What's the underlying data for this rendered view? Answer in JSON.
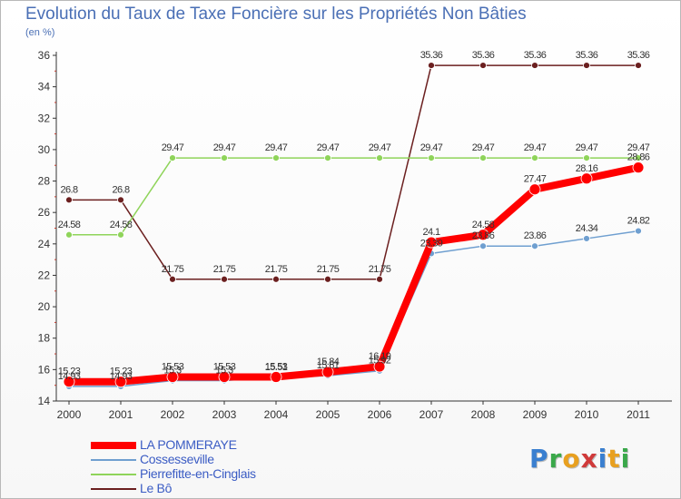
{
  "title": "Evolution du Taux de Taxe Foncière sur les Propriétés Non Bâties",
  "subtitle": "(en %)",
  "logo": {
    "letters": [
      {
        "ch": "P",
        "color": "#3a7fd0"
      },
      {
        "ch": "r",
        "color": "#3aa84a"
      },
      {
        "ch": "o",
        "color": "#e8a020"
      },
      {
        "ch": "x",
        "color": "#d03a3a"
      },
      {
        "ch": "i",
        "color": "#3a7fd0"
      },
      {
        "ch": "t",
        "color": "#e8a020"
      },
      {
        "ch": "i",
        "color": "#3aa84a"
      }
    ]
  },
  "chart_data": {
    "type": "line",
    "title": "Evolution du Taux de Taxe Foncière sur les Propriétés Non Bâties",
    "ylabel": "(en %)",
    "xlabel": "",
    "x": [
      "2000",
      "2001",
      "2002",
      "2003",
      "2004",
      "2005",
      "2006",
      "2007",
      "2008",
      "2009",
      "2010",
      "2011"
    ],
    "ylim": [
      14,
      36
    ],
    "yticks": [
      14,
      16,
      18,
      20,
      22,
      24,
      26,
      28,
      30,
      32,
      34,
      36
    ],
    "grid": false,
    "legend_position": "bottom-left",
    "series": [
      {
        "name": "Le Bô",
        "color": "#6b1f1f",
        "width": 1.5,
        "marker_r": 3.5,
        "values": [
          26.8,
          26.8,
          21.75,
          21.75,
          21.75,
          21.75,
          21.75,
          35.36,
          35.36,
          35.36,
          35.36,
          35.36
        ],
        "labels": [
          "26.8",
          "26.8",
          "21.75",
          "21.75",
          "21.75",
          "21.75",
          "21.75",
          "35.36",
          "35.36",
          "35.36",
          "35.36",
          "35.36"
        ]
      },
      {
        "name": "Pierrefitte-en-Cinglais",
        "color": "#8fd45a",
        "width": 1.5,
        "marker_r": 3.5,
        "values": [
          24.58,
          24.58,
          29.47,
          29.47,
          29.47,
          29.47,
          29.47,
          29.47,
          29.47,
          29.47,
          29.47,
          29.47
        ],
        "labels": [
          "24.58",
          "24.58",
          "29.47",
          "29.47",
          "29.47",
          "29.47",
          "29.47",
          "29.47",
          "29.47",
          "29.47",
          "29.47",
          "29.47"
        ]
      },
      {
        "name": "Cossesseville",
        "color": "#6f9fd0",
        "width": 1.5,
        "marker_r": 3.5,
        "values": [
          14.93,
          14.93,
          15.3,
          15.3,
          15.51,
          15.61,
          15.92,
          23.39,
          23.86,
          23.86,
          24.34,
          24.82
        ],
        "labels": [
          "14.93",
          "14.93",
          "15.3",
          "15.3",
          "15.51",
          "15.61",
          "15.92",
          "23.39",
          "23.86",
          "23.86",
          "24.34",
          "24.82"
        ]
      },
      {
        "name": "LA POMMERAYE",
        "color": "#ff0000",
        "width": 8,
        "marker_r": 6,
        "values": [
          15.23,
          15.23,
          15.53,
          15.53,
          15.53,
          15.84,
          16.19,
          24.1,
          24.58,
          27.47,
          28.16,
          28.86
        ],
        "labels": [
          "15.23",
          "15.23",
          "15.53",
          "15.53",
          "15.53",
          "15.84",
          "16.19",
          "24.1",
          "24.58",
          "27.47",
          "28.16",
          "28.86"
        ]
      }
    ],
    "legend_order": [
      "LA POMMERAYE",
      "Cossesseville",
      "Pierrefitte-en-Cinglais",
      "Le Bô"
    ]
  }
}
